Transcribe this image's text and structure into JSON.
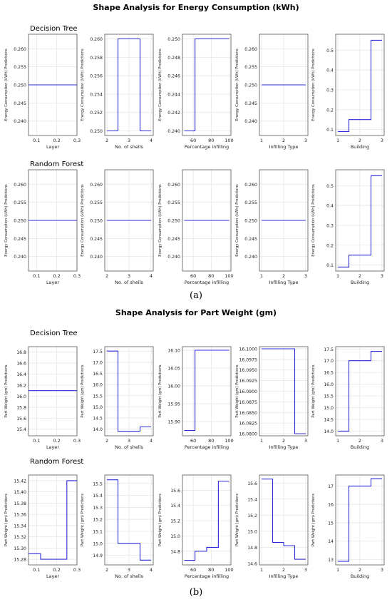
{
  "figure": {
    "section_a": {
      "title": "Shape Analysis for Energy Consumption (kWh)",
      "caption": "(a)"
    },
    "section_b": {
      "title": "Shape Analysis for Part Weight (gm)",
      "caption": "(b)"
    },
    "row_titles": {
      "decision_tree": "Decision Tree",
      "random_forest": "Random Forest"
    }
  },
  "colors": {
    "line": "#2b2bd9",
    "grid": "#e3e3e3",
    "axis": "#555555"
  },
  "chart_data": [
    {
      "type": "line",
      "section": "a",
      "model": "Decision Tree",
      "xlabel": "Layer",
      "ylabel": "Energy Consumption (kWh) Predictions",
      "xlim": [
        0.06,
        0.3
      ],
      "ylim": [
        0.236,
        0.264
      ],
      "xticks": [
        0.1,
        0.2,
        0.3
      ],
      "yticks": [
        0.24,
        0.245,
        0.25,
        0.255,
        0.26
      ],
      "yticklabels": [
        "0.240",
        "0.245",
        "0.250",
        "0.255",
        "0.260"
      ],
      "x": [
        0.06,
        0.3
      ],
      "y": [
        0.25,
        0.25
      ]
    },
    {
      "type": "line",
      "section": "a",
      "model": "Decision Tree",
      "xlabel": "No. of shells",
      "ylabel": "Energy Consumption (kWh) Predictions",
      "xlim": [
        1.9,
        4.1
      ],
      "ylim": [
        0.2495,
        0.2605
      ],
      "xticks": [
        2,
        3,
        4
      ],
      "yticks": [
        0.25,
        0.252,
        0.254,
        0.256,
        0.258,
        0.26
      ],
      "yticklabels": [
        "0.250",
        "0.252",
        "0.254",
        "0.256",
        "0.258",
        "0.260"
      ],
      "x": [
        2,
        2.5,
        2.5,
        3.5,
        3.5,
        4
      ],
      "y": [
        0.25,
        0.25,
        0.26,
        0.26,
        0.25,
        0.25
      ]
    },
    {
      "type": "line",
      "section": "a",
      "model": "Decision Tree",
      "xlabel": "Percentage infilling",
      "ylabel": "Energy Consumption (kWh) Predictions",
      "xlim": [
        48,
        102
      ],
      "ylim": [
        0.2395,
        0.2505
      ],
      "xticks": [
        60,
        80,
        100
      ],
      "yticks": [
        0.24,
        0.242,
        0.244,
        0.246,
        0.248,
        0.25
      ],
      "yticklabels": [
        "0.240",
        "0.242",
        "0.244",
        "0.246",
        "0.248",
        "0.250"
      ],
      "x": [
        50,
        62,
        62,
        100
      ],
      "y": [
        0.24,
        0.24,
        0.25,
        0.25
      ]
    },
    {
      "type": "line",
      "section": "a",
      "model": "Decision Tree",
      "xlabel": "Infilling Type",
      "ylabel": "Energy Consumption (kWh) Predictions",
      "xlim": [
        0.9,
        3.1
      ],
      "ylim": [
        0.236,
        0.264
      ],
      "xticks": [
        1,
        2,
        3
      ],
      "yticks": [
        0.24,
        0.245,
        0.25,
        0.255,
        0.26
      ],
      "yticklabels": [
        "0.240",
        "0.245",
        "0.250",
        "0.255",
        "0.260"
      ],
      "x": [
        1,
        3
      ],
      "y": [
        0.25,
        0.25
      ]
    },
    {
      "type": "line",
      "section": "a",
      "model": "Decision Tree",
      "xlabel": "Building",
      "ylabel": "Energy Consumption (kWh) Predictions",
      "xlim": [
        0.9,
        3.1
      ],
      "ylim": [
        0.07,
        0.58
      ],
      "xticks": [
        1,
        2,
        3
      ],
      "yticks": [
        0.1,
        0.2,
        0.3,
        0.4,
        0.5
      ],
      "yticklabels": [
        "0.1",
        "0.2",
        "0.3",
        "0.4",
        "0.5"
      ],
      "x": [
        1,
        1.5,
        1.5,
        2.5,
        2.5,
        3
      ],
      "y": [
        0.09,
        0.09,
        0.15,
        0.15,
        0.55,
        0.55
      ]
    },
    {
      "type": "line",
      "section": "a",
      "model": "Random Forest",
      "xlabel": "Layer",
      "ylabel": "Energy Consumption (kWh) Predictions",
      "xlim": [
        0.06,
        0.3
      ],
      "ylim": [
        0.236,
        0.264
      ],
      "xticks": [
        0.1,
        0.2,
        0.3
      ],
      "yticks": [
        0.24,
        0.245,
        0.25,
        0.255,
        0.26
      ],
      "yticklabels": [
        "0.240",
        "0.245",
        "0.250",
        "0.255",
        "0.260"
      ],
      "x": [
        0.06,
        0.3
      ],
      "y": [
        0.25,
        0.25
      ]
    },
    {
      "type": "line",
      "section": "a",
      "model": "Random Forest",
      "xlabel": "No. of shells",
      "ylabel": "Energy Consumption (kWh) Predictions",
      "xlim": [
        1.9,
        4.1
      ],
      "ylim": [
        0.236,
        0.264
      ],
      "xticks": [
        2,
        3,
        4
      ],
      "yticks": [
        0.24,
        0.245,
        0.25,
        0.255,
        0.26
      ],
      "yticklabels": [
        "0.240",
        "0.245",
        "0.250",
        "0.255",
        "0.260"
      ],
      "x": [
        2,
        4
      ],
      "y": [
        0.25,
        0.25
      ]
    },
    {
      "type": "line",
      "section": "a",
      "model": "Random Forest",
      "xlabel": "Percentage infilling",
      "ylabel": "Energy Consumption (kWh) Predictions",
      "xlim": [
        48,
        102
      ],
      "ylim": [
        0.236,
        0.264
      ],
      "xticks": [
        60,
        80,
        100
      ],
      "yticks": [
        0.24,
        0.245,
        0.25,
        0.255,
        0.26
      ],
      "yticklabels": [
        "0.240",
        "0.245",
        "0.250",
        "0.255",
        "0.260"
      ],
      "x": [
        50,
        100
      ],
      "y": [
        0.25,
        0.25
      ]
    },
    {
      "type": "line",
      "section": "a",
      "model": "Random Forest",
      "xlabel": "Infilling Type",
      "ylabel": "Energy Consumption (kWh) Predictions",
      "xlim": [
        0.9,
        3.1
      ],
      "ylim": [
        0.236,
        0.264
      ],
      "xticks": [
        1,
        2,
        3
      ],
      "yticks": [
        0.24,
        0.245,
        0.25,
        0.255,
        0.26
      ],
      "yticklabels": [
        "0.240",
        "0.245",
        "0.250",
        "0.255",
        "0.260"
      ],
      "x": [
        1,
        3
      ],
      "y": [
        0.25,
        0.25
      ]
    },
    {
      "type": "line",
      "section": "a",
      "model": "Random Forest",
      "xlabel": "Building",
      "ylabel": "Energy Consumption (kWh) Predictions",
      "xlim": [
        0.9,
        3.1
      ],
      "ylim": [
        0.07,
        0.58
      ],
      "xticks": [
        1,
        2,
        3
      ],
      "yticks": [
        0.1,
        0.2,
        0.3,
        0.4,
        0.5
      ],
      "yticklabels": [
        "0.1",
        "0.2",
        "0.3",
        "0.4",
        "0.5"
      ],
      "x": [
        1,
        1.5,
        1.5,
        2.5,
        2.5,
        3
      ],
      "y": [
        0.09,
        0.09,
        0.15,
        0.15,
        0.55,
        0.55
      ]
    },
    {
      "type": "line",
      "section": "b",
      "model": "Decision Tree",
      "xlabel": "Layer",
      "ylabel": "Part Weight (gm) Predictions",
      "xlim": [
        0.06,
        0.3
      ],
      "ylim": [
        15.28,
        16.9
      ],
      "xticks": [
        0.1,
        0.2,
        0.3
      ],
      "yticks": [
        15.4,
        15.6,
        15.8,
        16.0,
        16.2,
        16.4,
        16.6,
        16.8
      ],
      "yticklabels": [
        "15.4",
        "15.6",
        "15.8",
        "16.0",
        "16.2",
        "16.4",
        "16.6",
        "16.8"
      ],
      "x": [
        0.06,
        0.3
      ],
      "y": [
        16.1,
        16.1
      ]
    },
    {
      "type": "line",
      "section": "b",
      "model": "Decision Tree",
      "xlabel": "No. of shells",
      "ylabel": "Part Weight (gm) Predictions",
      "xlim": [
        1.9,
        4.1
      ],
      "ylim": [
        13.7,
        17.7
      ],
      "xticks": [
        2,
        3,
        4
      ],
      "yticks": [
        14.0,
        14.5,
        15.0,
        15.5,
        16.0,
        16.5,
        17.0,
        17.5
      ],
      "yticklabels": [
        "14.0",
        "14.5",
        "15.0",
        "15.5",
        "16.0",
        "16.5",
        "17.0",
        "17.5"
      ],
      "x": [
        2,
        2.5,
        2.5,
        3.5,
        3.5,
        4
      ],
      "y": [
        17.5,
        17.5,
        13.9,
        13.9,
        14.1,
        14.1
      ]
    },
    {
      "type": "line",
      "section": "b",
      "model": "Decision Tree",
      "xlabel": "Percentage infilling",
      "ylabel": "Part Weight (gm) Predictions",
      "xlim": [
        48,
        102
      ],
      "ylim": [
        15.86,
        16.11
      ],
      "xticks": [
        60,
        80,
        100
      ],
      "yticks": [
        15.9,
        15.95,
        16.0,
        16.05,
        16.1
      ],
      "yticklabels": [
        "15.90",
        "15.95",
        "16.00",
        "16.05",
        "16.10"
      ],
      "x": [
        50,
        62,
        62,
        100
      ],
      "y": [
        15.875,
        15.875,
        16.1,
        16.1
      ]
    },
    {
      "type": "line",
      "section": "b",
      "model": "Decision Tree",
      "xlabel": "Infilling Type",
      "ylabel": "Part Weight (gm) Predictions",
      "xlim": [
        0.9,
        3.1
      ],
      "ylim": [
        16.0795,
        16.1005
      ],
      "xticks": [
        1,
        2,
        3
      ],
      "yticks": [
        16.08,
        16.0825,
        16.085,
        16.0875,
        16.09,
        16.0925,
        16.095,
        16.0975,
        16.1
      ],
      "yticklabels": [
        "16.0800",
        "16.0825",
        "16.0850",
        "16.0875",
        "16.0900",
        "16.0925",
        "16.0950",
        "16.0975",
        "16.1000"
      ],
      "x": [
        1,
        2.5,
        2.5,
        3
      ],
      "y": [
        16.1,
        16.1,
        16.08,
        16.08
      ]
    },
    {
      "type": "line",
      "section": "b",
      "model": "Decision Tree",
      "xlabel": "Building",
      "ylabel": "Part Weight (gm) Predictions",
      "xlim": [
        0.9,
        3.1
      ],
      "ylim": [
        13.8,
        17.6
      ],
      "xticks": [
        1,
        2,
        3
      ],
      "yticks": [
        14.0,
        14.5,
        15.0,
        15.5,
        16.0,
        16.5,
        17.0,
        17.5
      ],
      "yticklabels": [
        "14.0",
        "14.5",
        "15.0",
        "15.5",
        "16.0",
        "16.5",
        "17.0",
        "17.5"
      ],
      "x": [
        1,
        1.5,
        1.5,
        2.5,
        2.5,
        3
      ],
      "y": [
        14.0,
        14.0,
        17.0,
        17.0,
        17.4,
        17.4
      ]
    },
    {
      "type": "line",
      "section": "b",
      "model": "Random Forest",
      "xlabel": "Layer",
      "ylabel": "Part Weight (gm) Predictions",
      "xlim": [
        0.06,
        0.3
      ],
      "ylim": [
        15.27,
        15.43
      ],
      "xticks": [
        0.1,
        0.2,
        0.3
      ],
      "yticks": [
        15.28,
        15.3,
        15.32,
        15.34,
        15.36,
        15.38,
        15.4,
        15.42
      ],
      "yticklabels": [
        "15.28",
        "15.30",
        "15.32",
        "15.34",
        "15.36",
        "15.38",
        "15.40",
        "15.42"
      ],
      "x": [
        0.06,
        0.12,
        0.12,
        0.25,
        0.25,
        0.3
      ],
      "y": [
        15.29,
        15.29,
        15.28,
        15.28,
        15.42,
        15.42
      ]
    },
    {
      "type": "line",
      "section": "b",
      "model": "Random Forest",
      "xlabel": "No. of shells",
      "ylabel": "Part Weight (gm) Predictions",
      "xlim": [
        1.9,
        4.1
      ],
      "ylim": [
        14.82,
        15.57
      ],
      "xticks": [
        2,
        3,
        4
      ],
      "yticks": [
        14.9,
        15.0,
        15.1,
        15.2,
        15.3,
        15.4,
        15.5
      ],
      "yticklabels": [
        "14.9",
        "15.0",
        "15.1",
        "15.2",
        "15.3",
        "15.4",
        "15.5"
      ],
      "x": [
        2,
        2.5,
        2.5,
        3.5,
        3.5,
        4
      ],
      "y": [
        15.53,
        15.53,
        15.0,
        15.0,
        14.86,
        14.86
      ]
    },
    {
      "type": "line",
      "section": "b",
      "model": "Random Forest",
      "xlabel": "Percentage infilling",
      "ylabel": "Part Weight (gm) Predictions",
      "xlim": [
        48,
        102
      ],
      "ylim": [
        14.62,
        15.8
      ],
      "xticks": [
        60,
        80,
        100
      ],
      "yticks": [
        14.8,
        15.0,
        15.2,
        15.4,
        15.6
      ],
      "yticklabels": [
        "14.8",
        "15.0",
        "15.2",
        "15.4",
        "15.6"
      ],
      "x": [
        50,
        62,
        62,
        75,
        75,
        88,
        88,
        100
      ],
      "y": [
        14.68,
        14.68,
        14.8,
        14.8,
        14.85,
        14.85,
        15.72,
        15.72
      ]
    },
    {
      "type": "line",
      "section": "b",
      "model": "Random Forest",
      "xlabel": "Infilling Type",
      "ylabel": "Part Weight (gm) Predictions",
      "xlim": [
        0.9,
        3.1
      ],
      "ylim": [
        14.58,
        15.7
      ],
      "xticks": [
        1,
        2,
        3
      ],
      "yticks": [
        14.6,
        14.8,
        15.0,
        15.2,
        15.4,
        15.6
      ],
      "yticklabels": [
        "14.6",
        "14.8",
        "15.0",
        "15.2",
        "15.4",
        "15.6"
      ],
      "x": [
        1,
        1.5,
        1.5,
        2,
        2,
        2.5,
        2.5,
        3
      ],
      "y": [
        15.65,
        15.65,
        14.86,
        14.86,
        14.82,
        14.82,
        14.65,
        14.65
      ]
    },
    {
      "type": "line",
      "section": "b",
      "model": "Random Forest",
      "xlabel": "Building",
      "ylabel": "Part Weight (gm) Predictions",
      "xlim": [
        0.9,
        3.1
      ],
      "ylim": [
        12.7,
        17.6
      ],
      "xticks": [
        1,
        2,
        3
      ],
      "yticks": [
        13,
        14,
        15,
        16,
        17
      ],
      "yticklabels": [
        "13",
        "14",
        "15",
        "16",
        "17"
      ],
      "x": [
        1,
        1.5,
        1.5,
        2.5,
        2.5,
        3
      ],
      "y": [
        12.9,
        12.9,
        17.0,
        17.0,
        17.4,
        17.4
      ]
    }
  ]
}
